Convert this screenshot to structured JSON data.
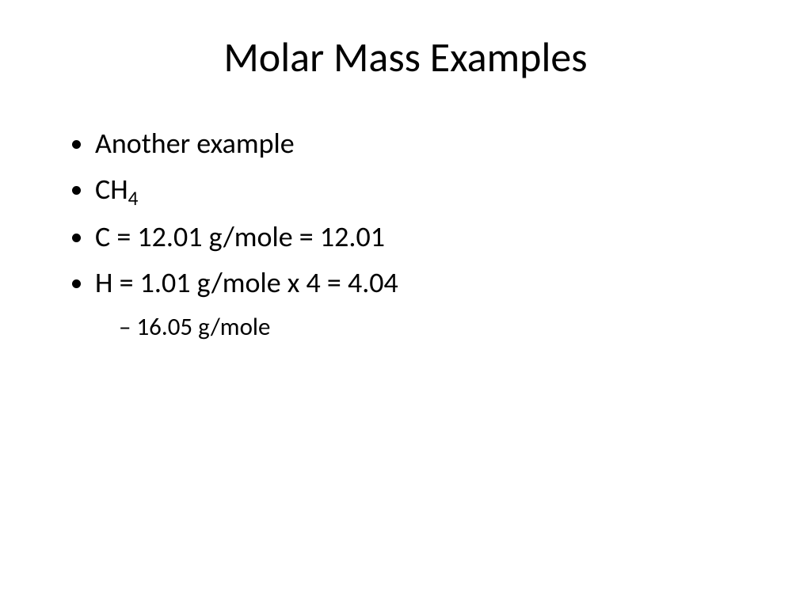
{
  "slide": {
    "title": "Molar Mass Examples",
    "bullets": [
      {
        "text": "Another example"
      },
      {
        "text_pre": "CH",
        "subscript": "4"
      },
      {
        "text": "C = 12.01 g/mole = 12.01"
      },
      {
        "text": "H = 1.01 g/mole x 4 = 4.04"
      }
    ],
    "sub_bullet": "16.05 g/mole",
    "colors": {
      "background": "#ffffff",
      "text": "#000000"
    },
    "typography": {
      "title_fontsize": 52,
      "bullet_fontsize": 36,
      "sub_bullet_fontsize": 31,
      "font_family": "Calibri"
    }
  }
}
